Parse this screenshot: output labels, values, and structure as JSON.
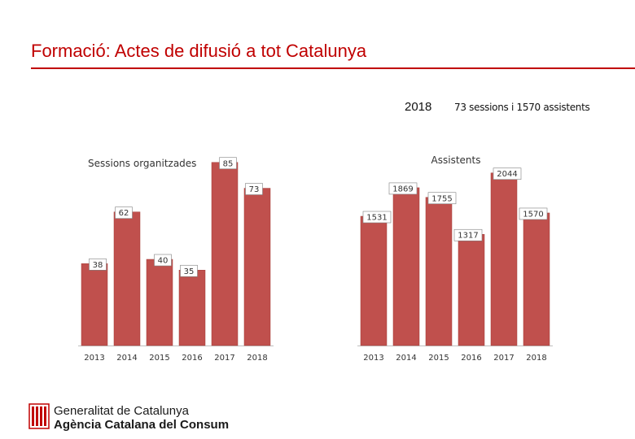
{
  "page": {
    "title": "Formació: Actes de difusió a tot Catalunya",
    "year": "2018",
    "summary": "73 sessions  i 1570 assistents"
  },
  "colors": {
    "title": "#c00000",
    "bar": "#c0504d",
    "bar_edge": "#a33a37",
    "label_box_border": "#7f7f7f",
    "baseline": "#bfbfbf"
  },
  "chart_data": [
    {
      "type": "bar",
      "title": "Sessions organitzades",
      "categories": [
        "2013",
        "2014",
        "2015",
        "2016",
        "2017",
        "2018"
      ],
      "values": [
        38,
        62,
        40,
        35,
        85,
        73
      ],
      "ylim": [
        0,
        100
      ],
      "xlabel": "",
      "ylabel": ""
    },
    {
      "type": "bar",
      "title": "Assistents",
      "categories": [
        "2013",
        "2014",
        "2015",
        "2016",
        "2017",
        "2018"
      ],
      "values": [
        1531,
        1869,
        1755,
        1317,
        2044,
        1570
      ],
      "ylim": [
        0,
        2600
      ],
      "xlabel": "",
      "ylabel": ""
    }
  ],
  "logo": {
    "line1": "Generalitat de Catalunya",
    "line2": "Agència Catalana del Consum"
  }
}
